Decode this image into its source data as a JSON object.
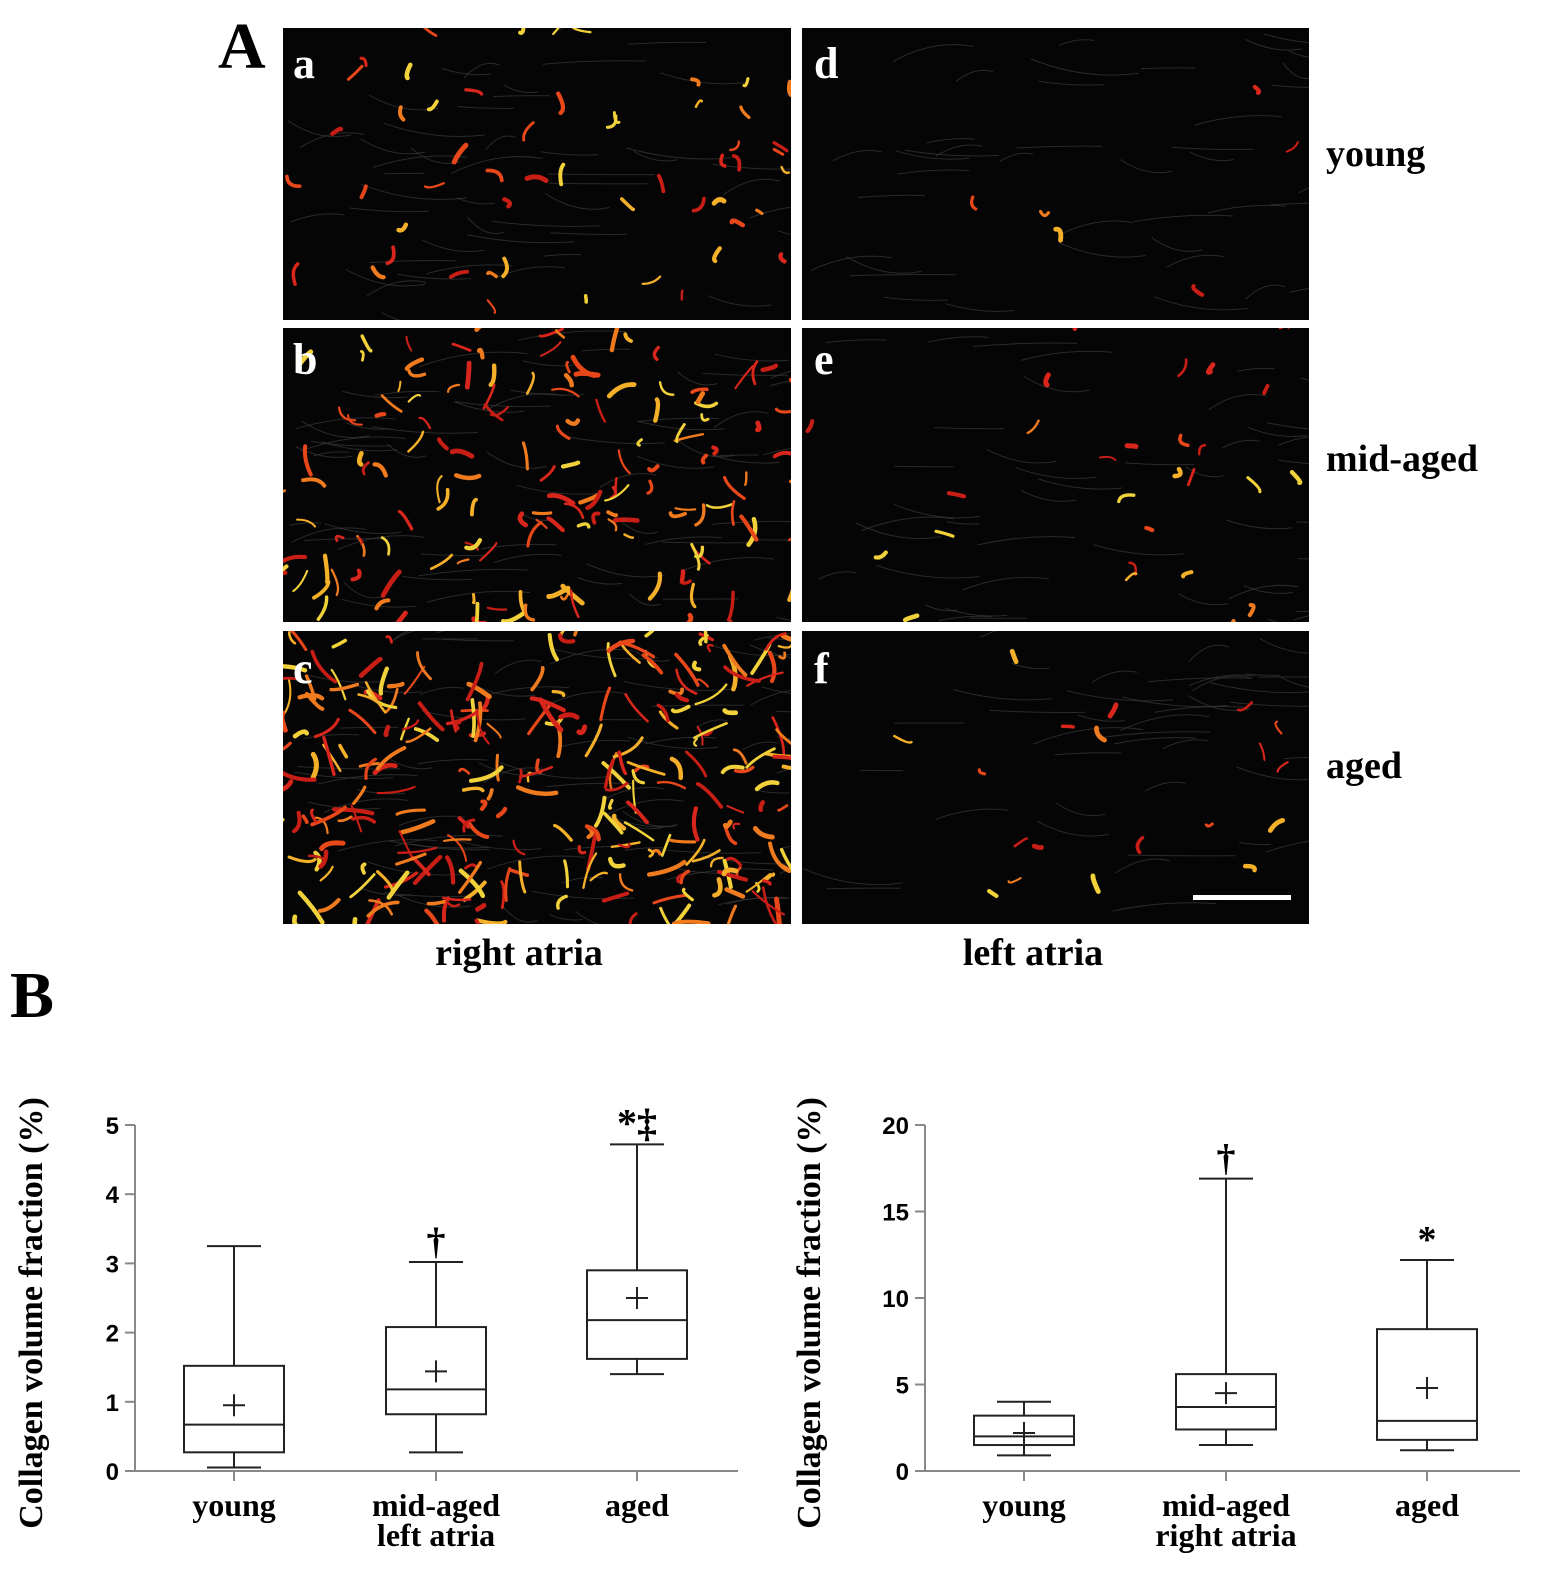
{
  "figure": {
    "panel_a_letter": "A",
    "panel_b_letter": "B",
    "micrographs": [
      {
        "id": "a",
        "label": "a",
        "row": "young",
        "column": "right atria",
        "density": 0.18
      },
      {
        "id": "d",
        "label": "d",
        "row": "young",
        "column": "left atria",
        "density": 0.0
      },
      {
        "id": "b",
        "label": "b",
        "row": "mid-aged",
        "column": "right atria",
        "density": 0.55
      },
      {
        "id": "e",
        "label": "e",
        "row": "mid-aged",
        "column": "left atria",
        "density": 0.08
      },
      {
        "id": "c",
        "label": "c",
        "row": "aged",
        "column": "right atria",
        "density": 1.0
      },
      {
        "id": "f",
        "label": "f",
        "row": "aged",
        "column": "left atria",
        "density": 0.05
      }
    ],
    "row_labels": [
      "young",
      "mid-aged",
      "aged"
    ],
    "column_labels": [
      "right atria",
      "left atria"
    ]
  },
  "chart_data": [
    {
      "type": "box",
      "ylabel": "Collagen volume fraction (%)",
      "ylim": [
        0,
        5
      ],
      "yticks": [
        "0",
        "1",
        "2",
        "3",
        "4",
        "5"
      ],
      "ytick_values": [
        0,
        1,
        2,
        3,
        4,
        5
      ],
      "categories": [
        "young",
        "mid-aged",
        "aged"
      ],
      "group_label": "left atria",
      "boxes": [
        {
          "min": 0.05,
          "q1": 0.27,
          "median": 0.67,
          "q3": 1.52,
          "max": 3.25,
          "mean": 0.95,
          "mark": ""
        },
        {
          "min": 0.27,
          "q1": 0.82,
          "median": 1.18,
          "q3": 2.08,
          "max": 3.02,
          "mean": 1.44,
          "mark": "†"
        },
        {
          "min": 1.4,
          "q1": 1.62,
          "median": 2.18,
          "q3": 2.9,
          "max": 4.72,
          "mean": 2.5,
          "mark": "*‡"
        }
      ]
    },
    {
      "type": "box",
      "ylabel": "Collagen volume fraction (%)",
      "ylim": [
        0,
        20
      ],
      "yticks": [
        "0",
        "5",
        "10",
        "15",
        "20"
      ],
      "ytick_values": [
        0,
        5,
        10,
        15,
        20
      ],
      "categories": [
        "young",
        "mid-aged",
        "aged"
      ],
      "group_label": "right atria",
      "boxes": [
        {
          "min": 0.9,
          "q1": 1.5,
          "median": 2.0,
          "q3": 3.2,
          "max": 4.0,
          "mean": 2.2,
          "mark": ""
        },
        {
          "min": 1.5,
          "q1": 2.4,
          "median": 3.7,
          "q3": 5.6,
          "max": 16.9,
          "mean": 4.5,
          "mark": "†"
        },
        {
          "min": 1.2,
          "q1": 1.8,
          "median": 2.9,
          "q3": 8.2,
          "max": 12.2,
          "mean": 4.8,
          "mark": "*"
        }
      ]
    }
  ]
}
